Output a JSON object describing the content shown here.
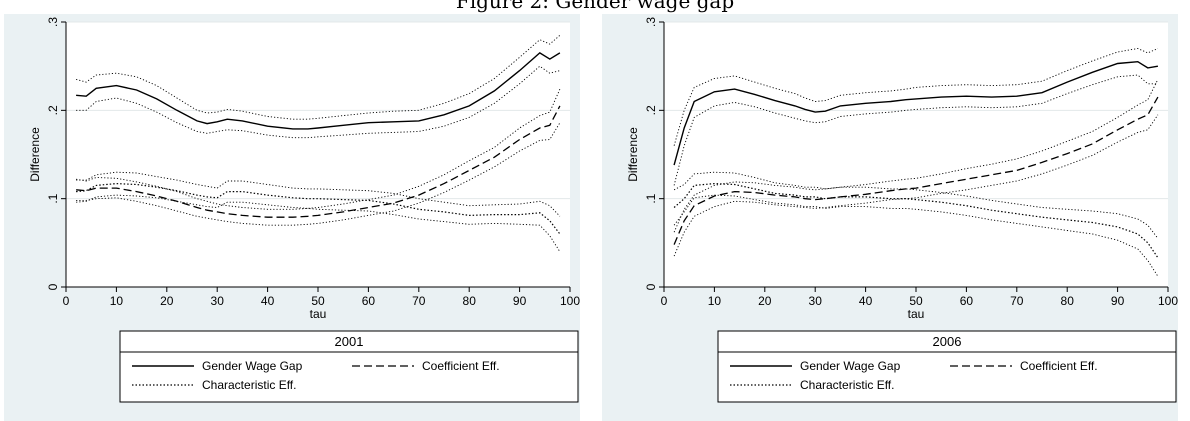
{
  "top_caption": "Figure 2: Gender wage gap",
  "chart_data": [
    {
      "type": "line",
      "title": "",
      "xlabel": "tau",
      "ylabel": "Difference",
      "xlim": [
        0,
        100
      ],
      "ylim": [
        0,
        0.3
      ],
      "xticks": [
        "0",
        "10",
        "20",
        "30",
        "40",
        "50",
        "60",
        "70",
        "80",
        "90",
        "100"
      ],
      "yticks": [
        "0",
        ".1",
        ".2",
        ".3"
      ],
      "grid": "horizontal",
      "legend": {
        "title": "2001",
        "placement": "bottom",
        "entries": [
          {
            "label": "Gender Wage Gap",
            "style": "solid"
          },
          {
            "label": "Coefficient Eff.",
            "style": "dashed"
          },
          {
            "label": "Characteristic Eff.",
            "style": "dotted"
          }
        ]
      },
      "x": [
        2,
        4,
        6,
        10,
        14,
        18,
        22,
        26,
        28,
        30,
        32,
        35,
        40,
        45,
        48,
        50,
        55,
        60,
        65,
        70,
        75,
        80,
        85,
        90,
        94,
        96,
        98
      ],
      "series": [
        {
          "name": "Gender Wage Gap",
          "style": "solid",
          "values": [
            0.217,
            0.216,
            0.225,
            0.228,
            0.223,
            0.213,
            0.2,
            0.188,
            0.185,
            0.187,
            0.19,
            0.188,
            0.182,
            0.179,
            0.179,
            0.18,
            0.183,
            0.186,
            0.187,
            0.188,
            0.195,
            0.205,
            0.222,
            0.245,
            0.265,
            0.258,
            0.265
          ],
          "ci_lower": [
            0.2,
            0.2,
            0.21,
            0.214,
            0.208,
            0.198,
            0.186,
            0.176,
            0.174,
            0.176,
            0.178,
            0.177,
            0.172,
            0.169,
            0.169,
            0.17,
            0.172,
            0.174,
            0.175,
            0.176,
            0.182,
            0.192,
            0.208,
            0.23,
            0.25,
            0.242,
            0.245
          ],
          "ci_upper": [
            0.235,
            0.232,
            0.24,
            0.242,
            0.238,
            0.228,
            0.214,
            0.2,
            0.197,
            0.198,
            0.201,
            0.199,
            0.193,
            0.19,
            0.19,
            0.191,
            0.194,
            0.197,
            0.199,
            0.2,
            0.208,
            0.219,
            0.236,
            0.26,
            0.28,
            0.275,
            0.285
          ]
        },
        {
          "name": "Coefficient Eff.",
          "style": "dashed",
          "values": [
            0.11,
            0.109,
            0.112,
            0.112,
            0.108,
            0.103,
            0.097,
            0.09,
            0.087,
            0.085,
            0.083,
            0.081,
            0.079,
            0.079,
            0.08,
            0.081,
            0.085,
            0.09,
            0.095,
            0.104,
            0.117,
            0.132,
            0.147,
            0.167,
            0.18,
            0.183,
            0.205
          ],
          "ci_lower": [
            0.098,
            0.098,
            0.1,
            0.101,
            0.097,
            0.092,
            0.086,
            0.08,
            0.078,
            0.076,
            0.074,
            0.072,
            0.07,
            0.07,
            0.071,
            0.072,
            0.076,
            0.081,
            0.086,
            0.095,
            0.107,
            0.121,
            0.136,
            0.154,
            0.166,
            0.167,
            0.186
          ],
          "ci_upper": [
            0.122,
            0.12,
            0.124,
            0.123,
            0.119,
            0.114,
            0.108,
            0.1,
            0.097,
            0.094,
            0.092,
            0.09,
            0.088,
            0.088,
            0.089,
            0.09,
            0.094,
            0.099,
            0.104,
            0.114,
            0.127,
            0.143,
            0.158,
            0.18,
            0.194,
            0.198,
            0.224
          ]
        },
        {
          "name": "Characteristic Eff.",
          "style": "dotted",
          "values": [
            0.108,
            0.109,
            0.115,
            0.117,
            0.116,
            0.113,
            0.109,
            0.104,
            0.102,
            0.101,
            0.108,
            0.108,
            0.104,
            0.101,
            0.1,
            0.1,
            0.099,
            0.098,
            0.094,
            0.088,
            0.085,
            0.081,
            0.082,
            0.082,
            0.084,
            0.075,
            0.06
          ],
          "ci_lower": [
            0.096,
            0.097,
            0.102,
            0.104,
            0.103,
            0.101,
            0.097,
            0.093,
            0.091,
            0.09,
            0.096,
            0.096,
            0.093,
            0.09,
            0.089,
            0.088,
            0.087,
            0.086,
            0.082,
            0.077,
            0.074,
            0.071,
            0.072,
            0.071,
            0.07,
            0.058,
            0.04
          ],
          "ci_upper": [
            0.121,
            0.121,
            0.127,
            0.13,
            0.129,
            0.125,
            0.121,
            0.116,
            0.114,
            0.112,
            0.12,
            0.12,
            0.116,
            0.112,
            0.111,
            0.111,
            0.11,
            0.109,
            0.106,
            0.1,
            0.096,
            0.092,
            0.093,
            0.094,
            0.097,
            0.092,
            0.08
          ]
        }
      ]
    },
    {
      "type": "line",
      "title": "",
      "xlabel": "tau",
      "ylabel": "Difference",
      "xlim": [
        0,
        100
      ],
      "ylim": [
        0,
        0.3
      ],
      "xticks": [
        "0",
        "10",
        "20",
        "30",
        "40",
        "50",
        "60",
        "70",
        "80",
        "90",
        "100"
      ],
      "yticks": [
        "0",
        ".1",
        ".2",
        ".3"
      ],
      "grid": "horizontal",
      "legend": {
        "title": "2006",
        "placement": "bottom",
        "entries": [
          {
            "label": "Gender Wage Gap",
            "style": "solid"
          },
          {
            "label": "Coefficient Eff.",
            "style": "dashed"
          },
          {
            "label": "Characteristic Eff.",
            "style": "dotted"
          }
        ]
      },
      "x": [
        2,
        4,
        6,
        10,
        14,
        18,
        22,
        26,
        28,
        30,
        32,
        35,
        40,
        45,
        48,
        50,
        55,
        60,
        65,
        70,
        75,
        80,
        85,
        90,
        94,
        96,
        98
      ],
      "series": [
        {
          "name": "Gender Wage Gap",
          "style": "solid",
          "values": [
            0.138,
            0.18,
            0.21,
            0.221,
            0.224,
            0.218,
            0.211,
            0.205,
            0.201,
            0.198,
            0.199,
            0.205,
            0.208,
            0.21,
            0.212,
            0.213,
            0.215,
            0.216,
            0.215,
            0.216,
            0.22,
            0.232,
            0.243,
            0.253,
            0.255,
            0.248,
            0.25
          ],
          "ci_lower": [
            0.115,
            0.16,
            0.192,
            0.205,
            0.209,
            0.204,
            0.197,
            0.191,
            0.188,
            0.186,
            0.187,
            0.193,
            0.196,
            0.198,
            0.2,
            0.201,
            0.203,
            0.204,
            0.203,
            0.204,
            0.208,
            0.219,
            0.229,
            0.238,
            0.24,
            0.23,
            0.23
          ],
          "ci_upper": [
            0.16,
            0.2,
            0.226,
            0.236,
            0.239,
            0.232,
            0.225,
            0.219,
            0.214,
            0.21,
            0.211,
            0.217,
            0.22,
            0.222,
            0.224,
            0.226,
            0.228,
            0.229,
            0.228,
            0.229,
            0.233,
            0.245,
            0.256,
            0.266,
            0.27,
            0.265,
            0.27
          ]
        },
        {
          "name": "Coefficient Eff.",
          "style": "dashed",
          "values": [
            0.048,
            0.075,
            0.092,
            0.103,
            0.108,
            0.107,
            0.104,
            0.102,
            0.1,
            0.099,
            0.1,
            0.102,
            0.105,
            0.109,
            0.111,
            0.112,
            0.117,
            0.122,
            0.127,
            0.132,
            0.141,
            0.151,
            0.162,
            0.178,
            0.19,
            0.195,
            0.215
          ],
          "ci_lower": [
            0.035,
            0.062,
            0.08,
            0.091,
            0.097,
            0.096,
            0.093,
            0.091,
            0.09,
            0.089,
            0.09,
            0.092,
            0.095,
            0.099,
            0.1,
            0.101,
            0.106,
            0.11,
            0.115,
            0.12,
            0.128,
            0.138,
            0.149,
            0.164,
            0.175,
            0.178,
            0.195
          ],
          "ci_upper": [
            0.062,
            0.088,
            0.104,
            0.115,
            0.119,
            0.118,
            0.115,
            0.113,
            0.111,
            0.11,
            0.111,
            0.113,
            0.116,
            0.12,
            0.122,
            0.123,
            0.128,
            0.134,
            0.139,
            0.145,
            0.154,
            0.165,
            0.176,
            0.192,
            0.206,
            0.212,
            0.235
          ]
        },
        {
          "name": "Characteristic Eff.",
          "style": "dotted",
          "values": [
            0.09,
            0.1,
            0.115,
            0.117,
            0.116,
            0.111,
            0.106,
            0.104,
            0.102,
            0.102,
            0.1,
            0.102,
            0.102,
            0.1,
            0.1,
            0.099,
            0.096,
            0.092,
            0.087,
            0.083,
            0.079,
            0.076,
            0.073,
            0.068,
            0.06,
            0.05,
            0.033
          ],
          "ci_lower": [
            0.07,
            0.085,
            0.101,
            0.104,
            0.103,
            0.099,
            0.095,
            0.093,
            0.091,
            0.091,
            0.089,
            0.091,
            0.091,
            0.089,
            0.089,
            0.088,
            0.085,
            0.081,
            0.076,
            0.072,
            0.068,
            0.064,
            0.06,
            0.053,
            0.043,
            0.03,
            0.012
          ],
          "ci_upper": [
            0.11,
            0.116,
            0.128,
            0.13,
            0.129,
            0.124,
            0.118,
            0.115,
            0.113,
            0.113,
            0.111,
            0.113,
            0.113,
            0.111,
            0.111,
            0.11,
            0.107,
            0.103,
            0.098,
            0.094,
            0.09,
            0.088,
            0.086,
            0.083,
            0.077,
            0.07,
            0.055
          ]
        }
      ]
    }
  ]
}
